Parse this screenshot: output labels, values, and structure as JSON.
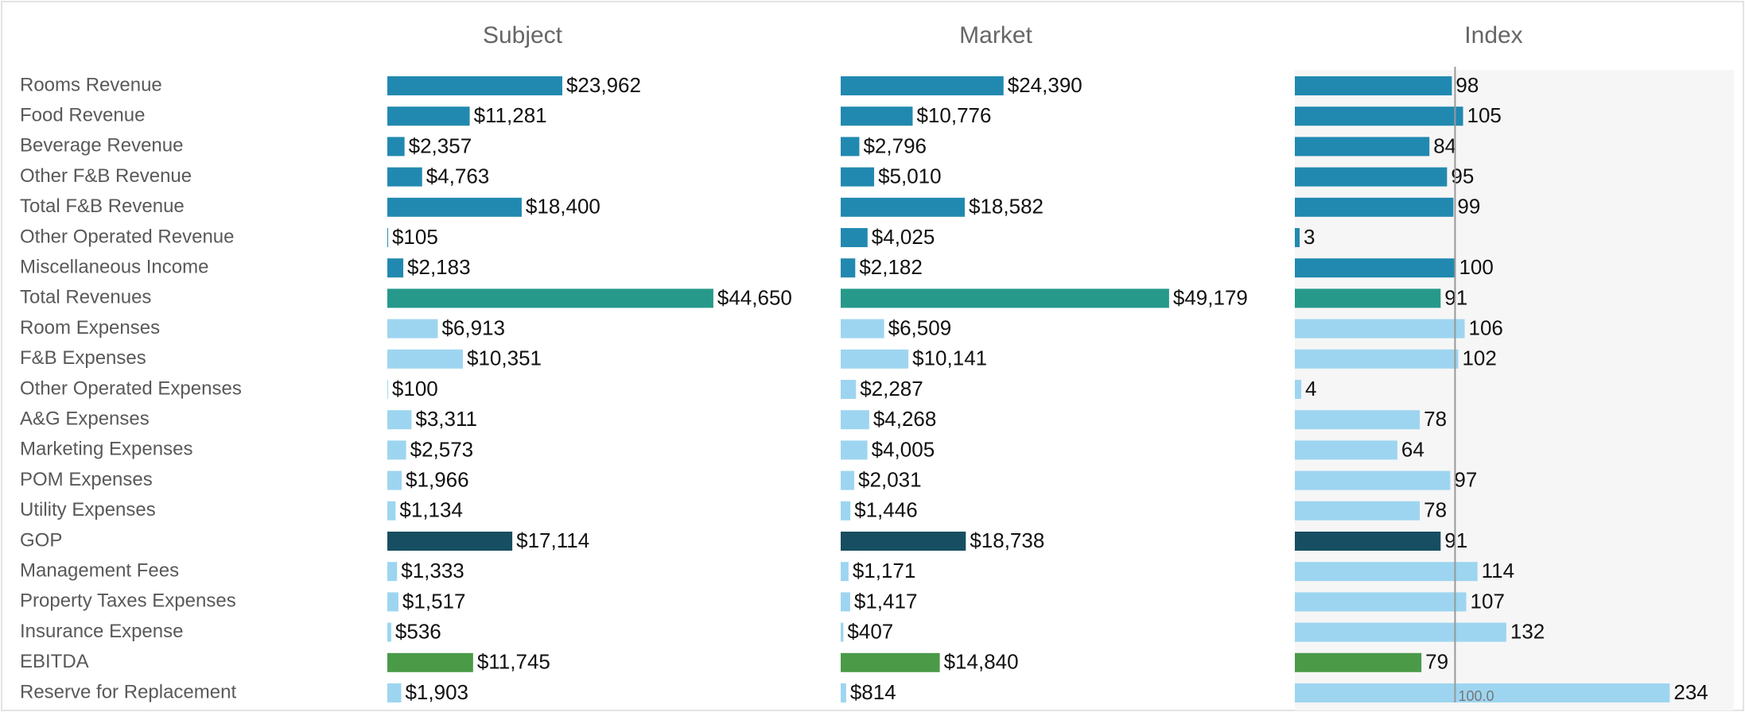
{
  "chart_data": {
    "type": "bar",
    "orientation": "horizontal",
    "categories": [
      "Rooms Revenue",
      "Food Revenue",
      "Beverage Revenue",
      "Other F&B Revenue",
      "Total F&B Revenue",
      "Other Operated Revenue",
      "Miscellaneous Income",
      "Total Revenues",
      "Room Expenses",
      "F&B Expenses",
      "Other Operated Expenses",
      "A&G Expenses",
      "Marketing Expenses",
      "POM Expenses",
      "Utility Expenses",
      "GOP",
      "Management Fees",
      "Property Taxes Expenses",
      "Insurance Expense",
      "EBITDA",
      "Reserve for Replacement"
    ],
    "colors": [
      "#2189b0",
      "#2189b0",
      "#2189b0",
      "#2189b0",
      "#2189b0",
      "#2189b0",
      "#2189b0",
      "#26998a",
      "#9dd5f0",
      "#9dd5f0",
      "#9dd5f0",
      "#9dd5f0",
      "#9dd5f0",
      "#9dd5f0",
      "#9dd5f0",
      "#174e61",
      "#9dd5f0",
      "#9dd5f0",
      "#9dd5f0",
      "#4a9a48",
      "#9dd5f0"
    ],
    "panels": [
      {
        "title": "Subject",
        "xlim": [
          0,
          61000
        ],
        "values": [
          23962,
          11281,
          2357,
          4763,
          18400,
          105,
          2183,
          44650,
          6913,
          10351,
          100,
          3311,
          2573,
          1966,
          1134,
          17114,
          1333,
          1517,
          536,
          11745,
          1903
        ],
        "value_labels": [
          "$23,962",
          "$11,281",
          "$2,357",
          "$4,763",
          "$18,400",
          "$105",
          "$2,183",
          "$44,650",
          "$6,913",
          "$10,351",
          "$100",
          "$3,311",
          "$2,573",
          "$1,966",
          "$1,134",
          "$17,114",
          "$1,333",
          "$1,517",
          "$536",
          "$11,745",
          "$1,903"
        ]
      },
      {
        "title": "Market",
        "xlim": [
          0,
          66700
        ],
        "values": [
          24390,
          10776,
          2796,
          5010,
          18582,
          4025,
          2182,
          49179,
          6509,
          10141,
          2287,
          4268,
          4005,
          2031,
          1446,
          18738,
          1171,
          1417,
          407,
          14840,
          814
        ],
        "value_labels": [
          "$24,390",
          "$10,776",
          "$2,796",
          "$5,010",
          "$18,582",
          "$4,025",
          "$2,182",
          "$49,179",
          "$6,509",
          "$10,141",
          "$2,287",
          "$4,268",
          "$4,005",
          "$2,031",
          "$1,446",
          "$18,738",
          "$1,171",
          "$1,417",
          "$407",
          "$14,840",
          "$814"
        ]
      },
      {
        "title": "Index",
        "xlim": [
          0,
          278
        ],
        "values": [
          98,
          105,
          84,
          95,
          99,
          3,
          100,
          91,
          106,
          102,
          4,
          78,
          64,
          97,
          78,
          91,
          114,
          107,
          132,
          79,
          234
        ],
        "reference": {
          "value": 100,
          "label": "100.0"
        }
      }
    ]
  }
}
